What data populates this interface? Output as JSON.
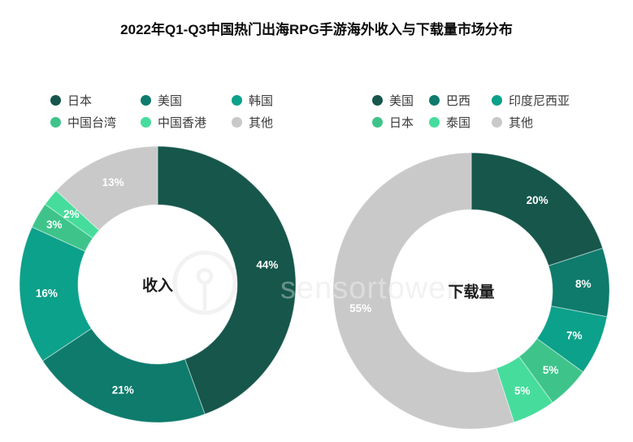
{
  "title": "2022年Q1-Q3中国热门出海RPG手游海外收入与下载量市场分布",
  "watermark": {
    "text": "sensortower",
    "logo": "sensor-tower-logo"
  },
  "chart_data": [
    {
      "type": "pie",
      "variant": "donut",
      "title": "收入",
      "center_label": "收入",
      "unit": "%",
      "legend_position": "top-left",
      "start_angle": "top",
      "direction": "clockwise",
      "slices": [
        {
          "label": "日本",
          "value": 44,
          "display": "44%",
          "color": "#16564B"
        },
        {
          "label": "美国",
          "value": 21,
          "display": "21%",
          "color": "#0E7B6C"
        },
        {
          "label": "韩国",
          "value": 16,
          "display": "16%",
          "color": "#0CA18A"
        },
        {
          "label": "中国台湾",
          "value": 3,
          "display": "3%",
          "color": "#3EC48A",
          "label_r": 147
        },
        {
          "label": "中国香港",
          "value": 2,
          "display": "2%",
          "color": "#46DD9C"
        },
        {
          "label": "其他",
          "value": 13,
          "display": "13%",
          "color": "#C9C9C9"
        }
      ]
    },
    {
      "type": "pie",
      "variant": "donut",
      "title": "下载量",
      "center_label": "下载量",
      "unit": "%",
      "legend_position": "top-right",
      "start_angle": "top",
      "direction": "clockwise",
      "slices": [
        {
          "label": "美国",
          "value": 20,
          "display": "20%",
          "color": "#16564B"
        },
        {
          "label": "巴西",
          "value": 8,
          "display": "8%",
          "color": "#0E7B6C"
        },
        {
          "label": "印度尼西亚",
          "value": 7,
          "display": "7%",
          "color": "#0CA18A"
        },
        {
          "label": "日本",
          "value": 5,
          "display": "5%",
          "color": "#3EC48A"
        },
        {
          "label": "泰国",
          "value": 5,
          "display": "5%",
          "color": "#46DD9C"
        },
        {
          "label": "其他",
          "value": 55,
          "display": "55%",
          "color": "#C9C9C9"
        }
      ]
    }
  ]
}
